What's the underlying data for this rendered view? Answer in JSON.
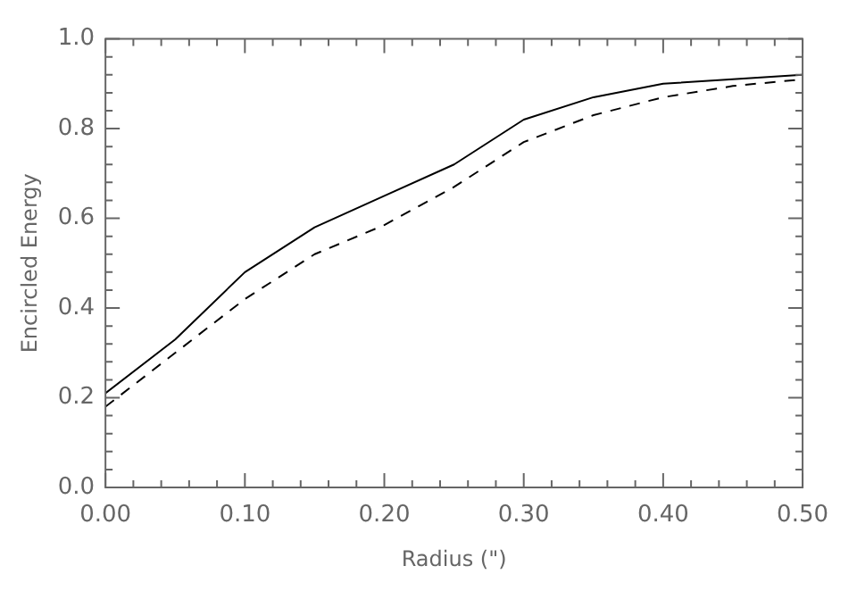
{
  "chart_data": {
    "type": "line",
    "xlabel": "Radius (\")",
    "ylabel": "Encircled Energy",
    "x": [
      0,
      0.05,
      0.1,
      0.15,
      0.2,
      0.25,
      0.3,
      0.35,
      0.4,
      0.45,
      0.5
    ],
    "series": [
      {
        "color": "#000000",
        "line_style": "solid",
        "values": [
          0.21,
          0.33,
          0.48,
          0.58,
          0.65,
          0.72,
          0.82,
          0.87,
          0.9,
          0.91,
          0.92
        ]
      },
      {
        "color": "#000000",
        "line_style": "dashed",
        "values": [
          0.18,
          0.3,
          0.42,
          0.52,
          0.585,
          0.67,
          0.77,
          0.83,
          0.87,
          0.895,
          0.91
        ]
      }
    ],
    "xlim": [
      0,
      0.5
    ],
    "ylim": [
      0,
      1
    ],
    "xticks": [
      {
        "value": 0,
        "label": "0.00"
      },
      {
        "value": 0.1,
        "label": "0.10"
      },
      {
        "value": 0.2,
        "label": "0.20"
      },
      {
        "value": 0.3,
        "label": "0.30"
      },
      {
        "value": 0.4,
        "label": "0.40"
      },
      {
        "value": 0.5,
        "label": "0.50"
      }
    ],
    "yticks": [
      {
        "value": 0,
        "label": "0.0"
      },
      {
        "value": 0.2,
        "label": "0.2"
      },
      {
        "value": 0.4,
        "label": "0.4"
      },
      {
        "value": 0.6,
        "label": "0.6"
      },
      {
        "value": 0.8,
        "label": "0.8"
      },
      {
        "value": 1,
        "label": "1.0"
      }
    ],
    "grid": false,
    "legend": false,
    "marker": "none"
  }
}
